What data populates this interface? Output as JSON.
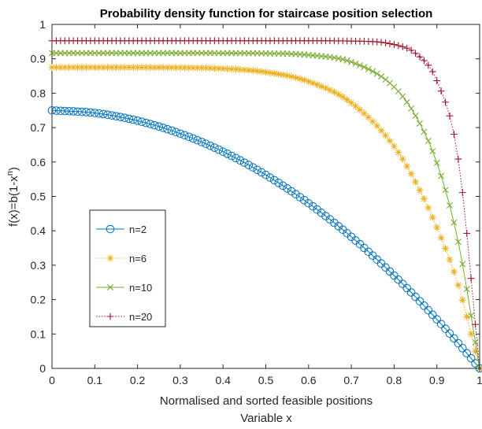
{
  "chart_data": {
    "type": "line",
    "title": "Probability density function for staircase position selection",
    "xlabel_lines": [
      "Normalised and sorted feasible positions",
      "Variable x"
    ],
    "ylabel": "f(x)=b(1-x",
    "ylabel_superscript": "n",
    "ylabel_close": ")",
    "xlim": [
      0,
      1
    ],
    "ylim": [
      0,
      1
    ],
    "x_ticks": [
      0,
      0.1,
      0.2,
      0.3,
      0.4,
      0.5,
      0.6,
      0.7,
      0.8,
      0.9,
      1
    ],
    "x_tick_labels": [
      "0",
      "0.1",
      "0.2",
      "0.3",
      "0.4",
      "0.5",
      "0.6",
      "0.7",
      "0.8",
      "0.9",
      "1"
    ],
    "y_ticks": [
      0,
      0.1,
      0.2,
      0.3,
      0.4,
      0.5,
      0.6,
      0.7,
      0.8,
      0.9,
      1
    ],
    "y_tick_labels": [
      "0",
      "0.1",
      "0.2",
      "0.3",
      "0.4",
      "0.5",
      "0.6",
      "0.7",
      "0.8",
      "0.9",
      "1"
    ],
    "grid": false,
    "legend_placement": "left-lower",
    "x": [
      0,
      0.1,
      0.2,
      0.3,
      0.4,
      0.5,
      0.6,
      0.7,
      0.8,
      0.85,
      0.9,
      0.95,
      1
    ],
    "series": [
      {
        "name": "n=2",
        "color": "#0072bd",
        "marker": "circle",
        "line_style": "solid",
        "values": [
          0.75,
          0.7425,
          0.72,
          0.6825,
          0.63,
          0.5625,
          0.48,
          0.3825,
          0.27,
          0.2081,
          0.1425,
          0.0731,
          0
        ]
      },
      {
        "name": "n=6",
        "color": "#edb120",
        "marker": "asterisk",
        "line_style": "dotted",
        "values": [
          0.875,
          0.875,
          0.875,
          0.8744,
          0.8714,
          0.8613,
          0.834,
          0.772,
          0.6456,
          0.5424,
          0.4099,
          0.2418,
          0
        ]
      },
      {
        "name": "n=10",
        "color": "#77ac30",
        "marker": "cross",
        "line_style": "solid",
        "values": [
          0.9167,
          0.9167,
          0.9167,
          0.9167,
          0.9166,
          0.9158,
          0.911,
          0.8907,
          0.8182,
          0.7345,
          0.5972,
          0.3678,
          0
        ]
      },
      {
        "name": "n=20",
        "color": "#a2142f",
        "marker": "plus",
        "line_style": "dotted",
        "values": [
          0.9524,
          0.9524,
          0.9524,
          0.9524,
          0.9524,
          0.9524,
          0.9524,
          0.9516,
          0.9414,
          0.9159,
          0.8362,
          0.6085,
          0
        ]
      }
    ]
  }
}
